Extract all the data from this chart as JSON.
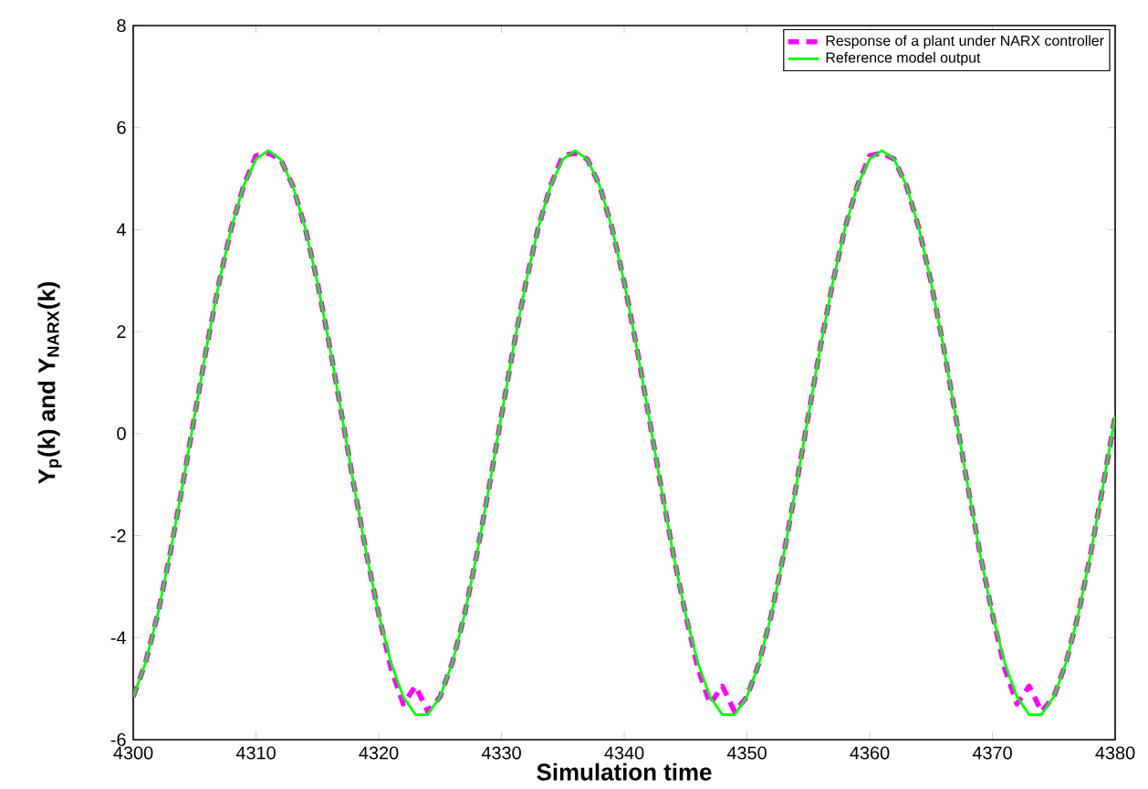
{
  "chart_data": {
    "type": "line",
    "xlabel": "Simulation time",
    "ylabel": "Y$_{p}$(k) and Y$_{NARX}$(k)",
    "x": [
      4300,
      4301,
      4302,
      4303,
      4304,
      4305,
      4306,
      4307,
      4308,
      4309,
      4310,
      4311,
      4312,
      4313,
      4314,
      4315,
      4316,
      4317,
      4318,
      4319,
      4320,
      4321,
      4322,
      4323,
      4324,
      4325,
      4326,
      4327,
      4328,
      4329,
      4330,
      4331,
      4332,
      4333,
      4334,
      4335,
      4336,
      4337,
      4338,
      4339,
      4340,
      4341,
      4342,
      4343,
      4344,
      4345,
      4346,
      4347,
      4348,
      4349,
      4350,
      4351,
      4352,
      4353,
      4354,
      4355,
      4356,
      4357,
      4358,
      4359,
      4360,
      4361,
      4362,
      4363,
      4364,
      4365,
      4366,
      4367,
      4368,
      4369,
      4370,
      4371,
      4372,
      4373,
      4374,
      4375,
      4376,
      4377,
      4378,
      4379,
      4380
    ],
    "series": [
      {
        "name": "Response of a plant under NARX controller",
        "color": "#ff00ff",
        "line_style": "dashed",
        "values": [
          -5.16,
          -4.49,
          -3.54,
          -2.36,
          -1.04,
          0.35,
          1.72,
          2.97,
          4.04,
          4.86,
          5.45,
          5.5,
          5.38,
          4.86,
          4.04,
          2.97,
          1.72,
          0.35,
          -1.04,
          -2.36,
          -3.54,
          -4.6,
          -5.3,
          -4.95,
          -5.45,
          -5.16,
          -4.49,
          -3.54,
          -2.36,
          -1.04,
          0.35,
          1.72,
          2.97,
          4.04,
          4.86,
          5.45,
          5.5,
          5.38,
          4.86,
          4.04,
          2.97,
          1.72,
          0.35,
          -1.04,
          -2.36,
          -3.54,
          -4.6,
          -5.3,
          -4.95,
          -5.45,
          -5.16,
          -4.49,
          -3.54,
          -2.36,
          -1.04,
          0.35,
          1.72,
          2.97,
          4.04,
          4.86,
          5.45,
          5.5,
          5.38,
          4.86,
          4.04,
          2.97,
          1.72,
          0.35,
          -1.04,
          -2.36,
          -3.54,
          -4.6,
          -5.3,
          -4.95,
          -5.45,
          -5.16,
          -4.49,
          -3.54,
          -2.36,
          -1.04,
          0.35
        ]
      },
      {
        "name": "Reference model output",
        "color": "#00ff00",
        "line_style": "solid",
        "values": [
          -5.16,
          -4.49,
          -3.54,
          -2.36,
          -1.04,
          0.35,
          1.72,
          2.97,
          4.04,
          4.86,
          5.38,
          5.55,
          5.38,
          4.86,
          4.04,
          2.97,
          1.72,
          0.35,
          -1.04,
          -2.36,
          -3.54,
          -4.49,
          -5.16,
          -5.51,
          -5.51,
          -5.16,
          -4.49,
          -3.54,
          -2.36,
          -1.04,
          0.35,
          1.72,
          2.97,
          4.04,
          4.86,
          5.38,
          5.55,
          5.38,
          4.86,
          4.04,
          2.97,
          1.72,
          0.35,
          -1.04,
          -2.36,
          -3.54,
          -4.49,
          -5.16,
          -5.51,
          -5.51,
          -5.16,
          -4.49,
          -3.54,
          -2.36,
          -1.04,
          0.35,
          1.72,
          2.97,
          4.04,
          4.86,
          5.38,
          5.55,
          5.38,
          4.86,
          4.04,
          2.97,
          1.72,
          0.35,
          -1.04,
          -2.36,
          -3.54,
          -4.49,
          -5.16,
          -5.51,
          -5.51,
          -5.16,
          -4.49,
          -3.54,
          -2.36,
          -1.04,
          0.35
        ]
      }
    ],
    "xlim": [
      4300,
      4380
    ],
    "xticks": [
      4300,
      4310,
      4320,
      4330,
      4340,
      4350,
      4360,
      4370,
      4380
    ],
    "ylim": [
      -6,
      8
    ],
    "yticks": [
      -6,
      -4,
      -2,
      0,
      2,
      4,
      6,
      8
    ],
    "grid": false,
    "legend": "top right",
    "marker": "none"
  }
}
